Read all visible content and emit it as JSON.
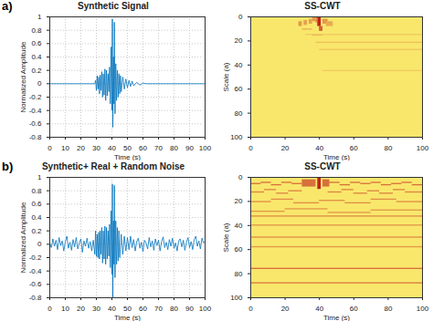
{
  "chart_data": [
    {
      "type": "line",
      "panel": "a)",
      "title": "Synthetic Signal",
      "x_label": "Time (s)",
      "y_label": "Normalized Amplitude",
      "xlim": [
        0,
        100
      ],
      "xticks": [
        0,
        10,
        20,
        30,
        40,
        50,
        60,
        70,
        80,
        90,
        100
      ],
      "ylim": [
        -0.8,
        1
      ],
      "yticks": [
        -0.8,
        -0.6,
        -0.4,
        -0.2,
        0,
        0.2,
        0.4,
        0.6,
        0.8,
        1
      ],
      "grid": true,
      "x": [
        0,
        29,
        29.5,
        30,
        30.5,
        31,
        31.5,
        32,
        32.5,
        33,
        33.5,
        34,
        34.5,
        35,
        35.5,
        36,
        36.5,
        37,
        37.5,
        38,
        38.5,
        39,
        39.5,
        40,
        40.3,
        40.6,
        41,
        41.3,
        41.6,
        42,
        42.5,
        43,
        43.5,
        44,
        44.5,
        45,
        45.5,
        46,
        47,
        48,
        49,
        50,
        51,
        52,
        53,
        54,
        56,
        58,
        60,
        62,
        100
      ],
      "series": [
        {
          "color": "#0072bd",
          "values": [
            0,
            0,
            0.05,
            -0.1,
            0.12,
            -0.08,
            0.1,
            -0.15,
            0.13,
            -0.1,
            0.18,
            -0.2,
            0.15,
            -0.17,
            0.22,
            -0.25,
            0.2,
            -0.18,
            0.15,
            -0.12,
            0.25,
            -0.3,
            0.55,
            -0.4,
            0.97,
            -0.65,
            0.4,
            -0.3,
            0.92,
            -0.45,
            0.3,
            -0.25,
            0.2,
            -0.2,
            0.15,
            -0.15,
            0.12,
            -0.12,
            0.1,
            -0.08,
            0.07,
            -0.06,
            0.05,
            -0.04,
            0.04,
            -0.03,
            0.02,
            -0.02,
            0.01,
            0,
            0
          ]
        }
      ]
    },
    {
      "type": "heatmap",
      "title": "SS-CWT",
      "x_label": "Time (s)",
      "y_label": "Scale (a)",
      "xlim": [
        0,
        100
      ],
      "xticks": [
        0,
        20,
        40,
        60,
        80,
        100
      ],
      "ylim": [
        0,
        100
      ],
      "yticks": [
        0,
        20,
        40,
        60,
        80,
        100
      ],
      "zlim": [
        0,
        1
      ],
      "colors": [
        "#f9e76c",
        "#c1221a"
      ],
      "cells": [
        [
          39,
          41,
          0,
          8,
          1
        ],
        [
          40,
          42,
          8,
          12,
          0.7
        ],
        [
          38,
          39,
          0,
          5,
          0.5
        ],
        [
          28,
          30,
          4,
          8,
          0.4
        ],
        [
          31,
          33,
          3,
          7,
          0.35
        ],
        [
          34,
          36,
          2,
          6,
          0.35
        ],
        [
          36,
          38,
          0,
          4,
          0.4
        ],
        [
          42,
          45,
          2,
          6,
          0.4
        ],
        [
          44,
          48,
          4,
          8,
          0.3
        ],
        [
          30,
          36,
          10,
          11,
          0.3
        ],
        [
          36,
          42,
          15,
          16,
          0.3
        ],
        [
          32,
          100,
          14.5,
          15.5,
          0.15
        ],
        [
          38,
          100,
          21,
          22,
          0.2
        ],
        [
          40,
          100,
          27,
          28,
          0.18
        ],
        [
          42,
          100,
          44.5,
          45.5,
          0.15
        ]
      ]
    },
    {
      "type": "line",
      "panel": "b)",
      "title": "Synthetic+ Real + Random Noise",
      "x_label": "Time (s)",
      "y_label": "Normalized Amplitude",
      "xlim": [
        0,
        100
      ],
      "xticks": [
        0,
        10,
        20,
        30,
        40,
        50,
        60,
        70,
        80,
        90,
        100
      ],
      "ylim": [
        -0.8,
        1
      ],
      "yticks": [
        -0.8,
        -0.6,
        -0.4,
        -0.2,
        0,
        0.2,
        0.4,
        0.6,
        0.8,
        1
      ],
      "grid": true,
      "x": [
        0,
        1,
        2,
        3,
        4,
        5,
        6,
        7,
        8,
        9,
        10,
        11,
        12,
        13,
        14,
        15,
        16,
        17,
        18,
        19,
        20,
        21,
        22,
        23,
        24,
        25,
        26,
        27,
        28,
        29,
        29.5,
        30,
        30.5,
        31,
        31.5,
        32,
        32.5,
        33,
        33.5,
        34,
        34.5,
        35,
        35.5,
        36,
        36.5,
        37,
        37.5,
        38,
        38.5,
        39,
        39.5,
        40,
        40.3,
        40.6,
        41,
        41.3,
        41.6,
        42,
        42.5,
        43,
        43.5,
        44,
        44.5,
        45,
        46,
        47,
        48,
        49,
        50,
        51,
        52,
        53,
        54,
        55,
        56,
        57,
        58,
        59,
        60,
        61,
        62,
        63,
        64,
        65,
        66,
        67,
        68,
        69,
        70,
        71,
        72,
        73,
        74,
        75,
        76,
        77,
        78,
        79,
        80,
        81,
        82,
        83,
        84,
        85,
        86,
        87,
        88,
        89,
        90,
        91,
        92,
        93,
        94,
        95,
        96,
        97,
        98,
        99,
        100
      ],
      "series": [
        {
          "color": "#0072bd",
          "values": [
            0.02,
            -0.05,
            0.08,
            -0.03,
            0.06,
            -0.08,
            0.1,
            -0.02,
            0.05,
            -0.1,
            0.04,
            0.12,
            -0.06,
            0.03,
            -0.09,
            0.07,
            -0.04,
            0.1,
            -0.07,
            0.02,
            0.08,
            -0.12,
            0.05,
            -0.03,
            0.09,
            -0.06,
            0.04,
            -0.1,
            0.06,
            -0.15,
            0.2,
            -0.18,
            0.15,
            -0.2,
            0.18,
            -0.22,
            0.2,
            -0.15,
            0.25,
            -0.28,
            0.2,
            -0.22,
            0.27,
            -0.3,
            0.25,
            -0.22,
            0.2,
            -0.18,
            0.3,
            -0.35,
            0.5,
            -0.45,
            0.9,
            -0.8,
            0.35,
            -0.3,
            0.88,
            -0.5,
            0.35,
            -0.3,
            0.25,
            -0.25,
            0.2,
            -0.2,
            0.15,
            -0.15,
            0.12,
            -0.1,
            0.1,
            -0.08,
            0.12,
            -0.05,
            0.07,
            -0.1,
            0.04,
            0.09,
            -0.06,
            0.03,
            -0.11,
            0.06,
            0.02,
            -0.07,
            0.1,
            -0.04,
            0.05,
            -0.09,
            0.08,
            -0.02,
            0.06,
            -0.1,
            0.04,
            0.11,
            -0.05,
            0.03,
            -0.08,
            0.07,
            -0.03,
            0.09,
            -0.06,
            0.02,
            -0.1,
            0.05,
            0.08,
            -0.04,
            0.06,
            -0.09,
            0.03,
            0.1,
            -0.05,
            0.04,
            -0.08,
            0.07,
            0.12,
            -0.03,
            0.05,
            -0.07,
            0.09,
            0.02,
            0.04
          ]
        }
      ]
    },
    {
      "type": "heatmap",
      "title": "SS-CWT",
      "x_label": "Time (s)",
      "y_label": "Scale (a)",
      "xlim": [
        0,
        100
      ],
      "xticks": [
        0,
        20,
        40,
        60,
        80,
        100
      ],
      "ylim": [
        0,
        100
      ],
      "yticks": [
        0,
        20,
        40,
        60,
        80,
        100
      ],
      "zlim": [
        0,
        1
      ],
      "colors": [
        "#f9e76c",
        "#c1221a"
      ],
      "cells": [
        [
          0,
          6,
          5,
          6,
          0.6
        ],
        [
          6,
          12,
          4,
          5,
          0.6
        ],
        [
          12,
          18,
          6,
          7,
          0.6
        ],
        [
          18,
          24,
          4,
          5,
          0.6
        ],
        [
          24,
          30,
          5,
          6,
          0.6
        ],
        [
          45,
          52,
          4,
          5,
          0.6
        ],
        [
          52,
          58,
          6,
          7,
          0.6
        ],
        [
          58,
          64,
          4,
          5,
          0.6
        ],
        [
          64,
          70,
          5,
          6,
          0.6
        ],
        [
          70,
          76,
          4,
          5,
          0.6
        ],
        [
          76,
          82,
          6,
          7,
          0.6
        ],
        [
          82,
          88,
          5,
          6,
          0.6
        ],
        [
          88,
          94,
          4,
          5,
          0.6
        ],
        [
          94,
          100,
          6,
          7,
          0.6
        ],
        [
          0,
          8,
          12,
          13,
          0.5
        ],
        [
          8,
          15,
          10,
          11,
          0.5
        ],
        [
          15,
          22,
          13,
          14,
          0.5
        ],
        [
          22,
          30,
          11,
          12,
          0.5
        ],
        [
          45,
          53,
          12,
          13,
          0.5
        ],
        [
          53,
          60,
          10,
          11,
          0.5
        ],
        [
          60,
          68,
          13,
          14,
          0.5
        ],
        [
          68,
          75,
          11,
          12,
          0.5
        ],
        [
          75,
          83,
          13,
          14,
          0.5
        ],
        [
          83,
          90,
          10,
          11,
          0.5
        ],
        [
          90,
          100,
          12,
          13,
          0.5
        ],
        [
          0,
          12,
          20,
          21,
          0.45
        ],
        [
          12,
          25,
          18,
          19,
          0.45
        ],
        [
          25,
          40,
          21,
          22,
          0.45
        ],
        [
          40,
          55,
          19,
          20,
          0.45
        ],
        [
          55,
          70,
          21,
          22,
          0.45
        ],
        [
          70,
          85,
          18,
          19,
          0.45
        ],
        [
          85,
          100,
          20,
          21,
          0.45
        ],
        [
          0,
          20,
          28,
          29,
          0.4
        ],
        [
          20,
          45,
          26,
          27,
          0.4
        ],
        [
          45,
          70,
          29,
          30,
          0.4
        ],
        [
          70,
          100,
          27,
          28,
          0.4
        ],
        [
          39,
          41,
          0,
          10,
          1
        ],
        [
          30,
          38,
          2,
          8,
          0.6
        ],
        [
          42,
          46,
          2,
          8,
          0.6
        ],
        [
          0,
          100,
          32,
          33,
          0.45
        ],
        [
          0,
          100,
          39.5,
          40.5,
          0.4
        ],
        [
          0,
          100,
          49.5,
          50.5,
          0.45
        ],
        [
          0,
          100,
          57.5,
          58.5,
          0.4
        ],
        [
          0,
          100,
          75.5,
          76.5,
          0.6
        ],
        [
          0,
          100,
          87.5,
          88.5,
          0.55
        ]
      ]
    }
  ]
}
